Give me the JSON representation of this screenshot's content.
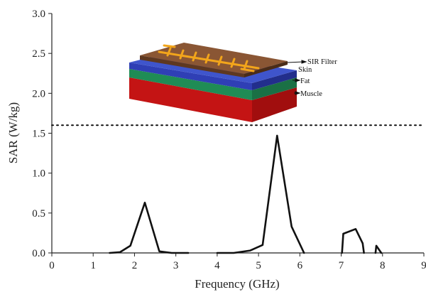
{
  "chart_data": {
    "type": "line",
    "xlabel": "Frequency (GHz)",
    "ylabel": "SAR (W/kg)",
    "xlim": [
      0,
      9
    ],
    "ylim": [
      0,
      3.0
    ],
    "xticks": [
      "0",
      "1",
      "2",
      "3",
      "4",
      "5",
      "6",
      "7",
      "8",
      "9"
    ],
    "yticks": [
      "0.0",
      "0.5",
      "1.0",
      "1.5",
      "2.0",
      "2.5",
      "3.0"
    ],
    "threshold": {
      "y": 1.6,
      "style": "dotted"
    },
    "grid": false,
    "series": [
      {
        "segments": [
          [
            [
              1.4,
              0.0
            ],
            [
              1.65,
              0.01
            ],
            [
              1.9,
              0.09
            ],
            [
              2.25,
              0.63
            ],
            [
              2.6,
              0.02
            ],
            [
              2.9,
              0.0
            ],
            [
              3.3,
              0.0
            ]
          ],
          [
            [
              4.0,
              0.0
            ],
            [
              4.4,
              0.0
            ],
            [
              4.8,
              0.03
            ],
            [
              5.1,
              0.1
            ],
            [
              5.45,
              1.47
            ],
            [
              5.8,
              0.33
            ],
            [
              6.1,
              0.0
            ]
          ],
          [
            [
              7.02,
              0.0
            ],
            [
              7.05,
              0.24
            ],
            [
              7.35,
              0.3
            ],
            [
              7.52,
              0.12
            ],
            [
              7.55,
              0.0
            ]
          ],
          [
            [
              7.83,
              0.0
            ],
            [
              7.85,
              0.09
            ],
            [
              7.97,
              0.0
            ]
          ]
        ]
      }
    ]
  },
  "inset": {
    "layers": [
      "SIR Filter",
      "Skin",
      "Fat",
      "Muscle"
    ]
  }
}
